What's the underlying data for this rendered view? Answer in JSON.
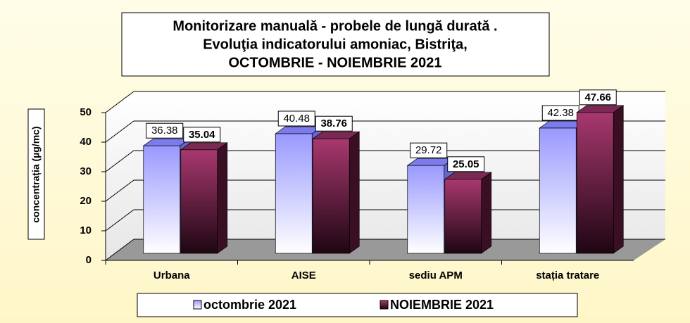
{
  "chart_data": {
    "type": "bar3d",
    "title": [
      "Monitorizare manuală - probele de lungă durată .",
      "Evoluţia indicatorului amoniac, Bistriţa,",
      "OCTOMBRIE - NOIEMBRIE 2021"
    ],
    "y_label": "concentrația (µg/mc)",
    "categories": [
      "Urbana",
      "AISE",
      "sediu APM",
      "stația tratare"
    ],
    "series": [
      {
        "name": "octombrie 2021",
        "color": "#9999ff",
        "values": [
          36.38,
          40.48,
          29.72,
          42.38
        ]
      },
      {
        "name": "NOIEMBRIE 2021",
        "color": "#993366",
        "values": [
          35.04,
          38.76,
          25.05,
          47.66
        ]
      }
    ],
    "ylim": [
      0,
      50
    ],
    "yticks": [
      0,
      10,
      20,
      30,
      40,
      50
    ],
    "grid": true,
    "legend": "bottom"
  }
}
